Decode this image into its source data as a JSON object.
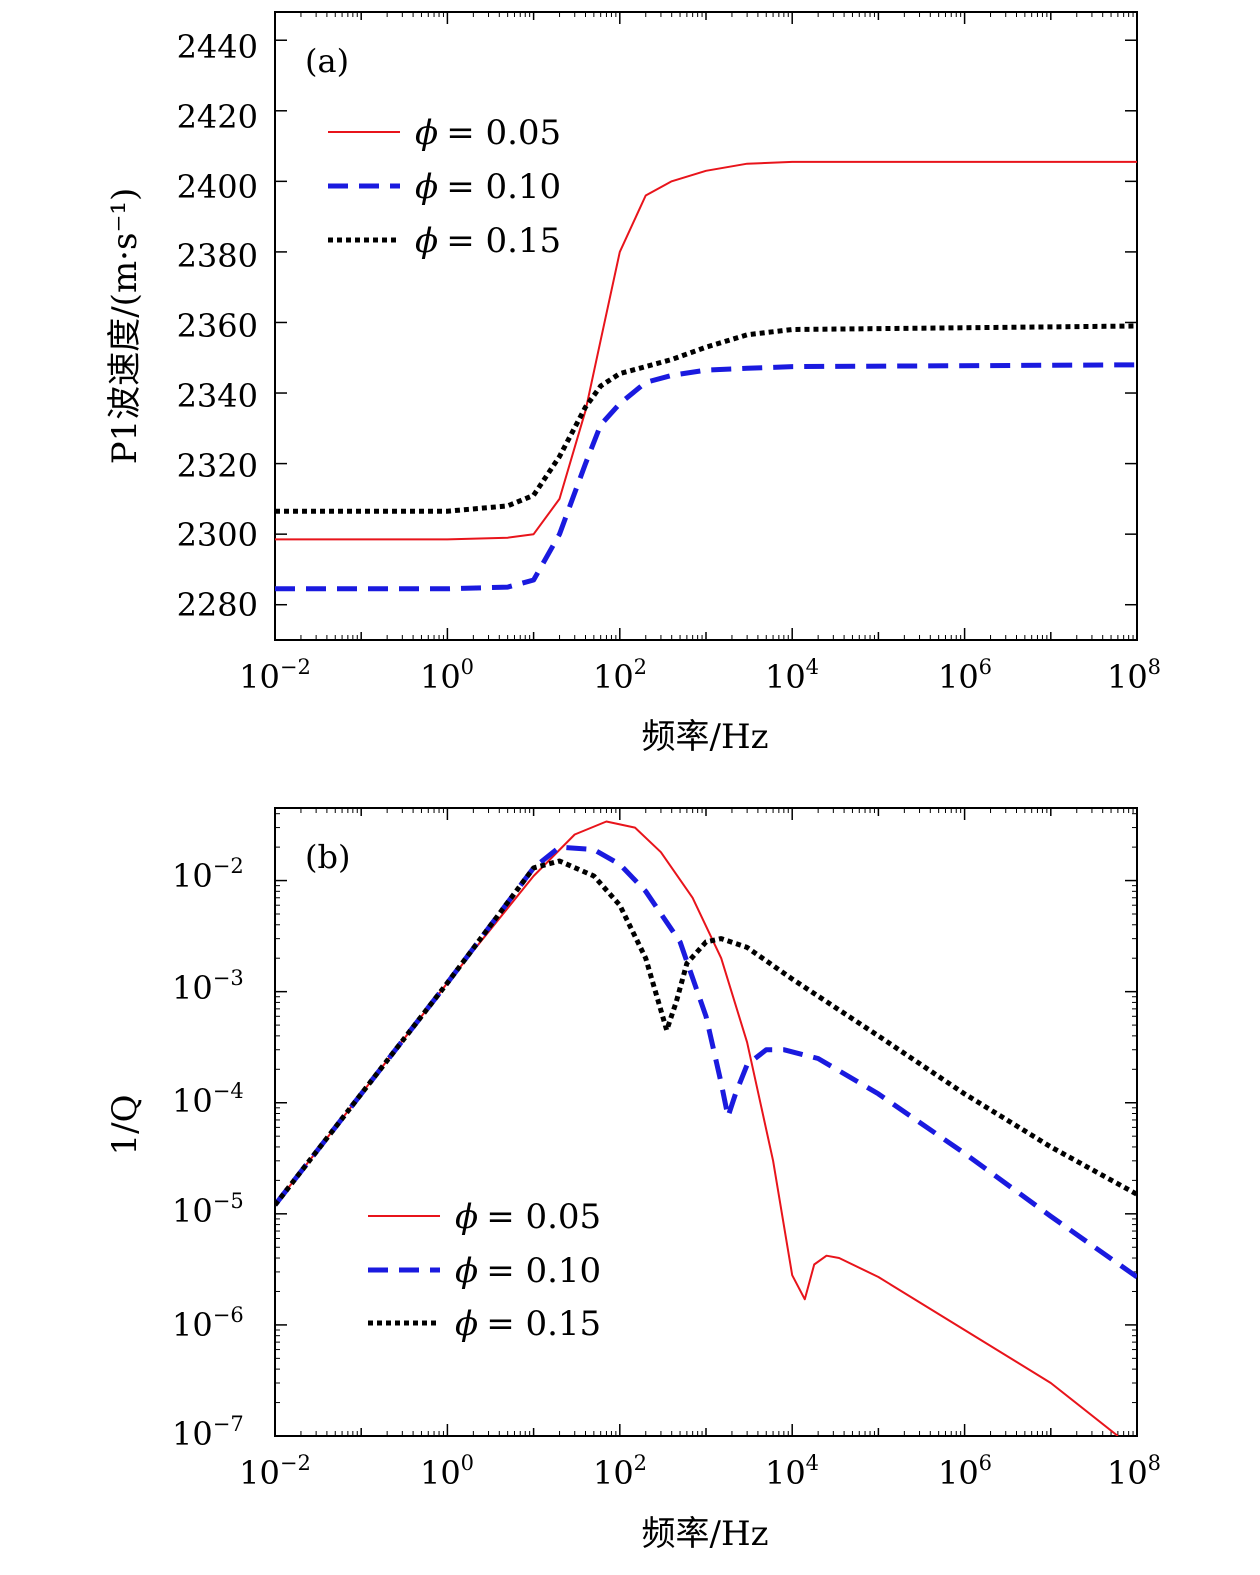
{
  "colors": {
    "red": "#e8141b",
    "blue": "#1a1adf",
    "black": "#000000"
  },
  "chart_data": [
    {
      "type": "line",
      "panel_label": "(a)",
      "xscale": "log",
      "xlim": [
        0.01,
        100000000
      ],
      "ylim": [
        2270,
        2448
      ],
      "xlabel": "频率/Hz",
      "ylabel": "P1波速度/(m·s⁻¹)",
      "x_ticks": [
        {
          "base": "10",
          "exp": "−2"
        },
        {
          "base": "10",
          "exp": "0"
        },
        {
          "base": "10",
          "exp": "2"
        },
        {
          "base": "10",
          "exp": "4"
        },
        {
          "base": "10",
          "exp": "6"
        },
        {
          "base": "10",
          "exp": "8"
        }
      ],
      "y_ticks": [
        "2280",
        "2300",
        "2320",
        "2340",
        "2360",
        "2380",
        "2400",
        "2420",
        "2440"
      ],
      "y_tick_values": [
        2280,
        2300,
        2320,
        2340,
        2360,
        2380,
        2400,
        2420,
        2440
      ],
      "legend_position": "upper-left",
      "series": [
        {
          "name": "ϕ = 0.05",
          "phi_label": "ϕ",
          "value_label": "= 0.05",
          "style": "solid",
          "x": [
            0.01,
            1,
            5,
            10,
            20,
            40,
            60,
            100,
            200,
            400,
            1000,
            3000,
            10000,
            100000000
          ],
          "y": [
            2298.5,
            2298.5,
            2299,
            2300,
            2310,
            2335,
            2355,
            2380,
            2396,
            2400,
            2403,
            2405,
            2405.5,
            2405.5
          ]
        },
        {
          "name": "ϕ = 0.10",
          "phi_label": "ϕ",
          "value_label": "= 0.10",
          "style": "dashed",
          "x": [
            0.01,
            1,
            5,
            10,
            20,
            40,
            60,
            100,
            200,
            400,
            1000,
            3000,
            10000,
            100000000
          ],
          "y": [
            2284.5,
            2284.5,
            2285,
            2287,
            2300,
            2320,
            2331,
            2337,
            2343,
            2345,
            2346.5,
            2347,
            2347.5,
            2348
          ]
        },
        {
          "name": "ϕ = 0.15",
          "phi_label": "ϕ",
          "value_label": "= 0.15",
          "style": "dotted",
          "x": [
            0.01,
            1,
            5,
            10,
            20,
            40,
            60,
            100,
            200,
            400,
            1000,
            3000,
            10000,
            100000000
          ],
          "y": [
            2306.5,
            2306.5,
            2308,
            2311,
            2322,
            2336,
            2342,
            2345.5,
            2347.5,
            2349.5,
            2353,
            2356.5,
            2358,
            2359
          ]
        }
      ]
    },
    {
      "type": "line",
      "panel_label": "(b)",
      "xscale": "log",
      "yscale": "log",
      "xlim": [
        0.01,
        100000000
      ],
      "ylim": [
        1e-07,
        0.045
      ],
      "xlabel": "频率/Hz",
      "ylabel": "1/Q",
      "x_ticks": [
        {
          "base": "10",
          "exp": "−2"
        },
        {
          "base": "10",
          "exp": "0"
        },
        {
          "base": "10",
          "exp": "2"
        },
        {
          "base": "10",
          "exp": "4"
        },
        {
          "base": "10",
          "exp": "6"
        },
        {
          "base": "10",
          "exp": "8"
        }
      ],
      "y_ticks": [
        {
          "base": "10",
          "exp": "−7"
        },
        {
          "base": "10",
          "exp": "−6"
        },
        {
          "base": "10",
          "exp": "−5"
        },
        {
          "base": "10",
          "exp": "−4"
        },
        {
          "base": "10",
          "exp": "−3"
        },
        {
          "base": "10",
          "exp": "−2"
        }
      ],
      "y_tick_values": [
        1e-07,
        1e-06,
        1e-05,
        0.0001,
        0.001,
        0.01
      ],
      "legend_position": "lower-left",
      "series": [
        {
          "name": "ϕ = 0.05",
          "phi_label": "ϕ",
          "value_label": "= 0.05",
          "style": "solid",
          "x": [
            0.01,
            1,
            10,
            30,
            70,
            150,
            300,
            700,
            1500,
            3000,
            6000,
            10000,
            14000,
            18000,
            25000,
            35000,
            100000,
            1000000,
            10000000,
            60000000
          ],
          "y": [
            1.2e-05,
            0.0012,
            0.011,
            0.026,
            0.034,
            0.03,
            0.018,
            0.007,
            0.002,
            0.00035,
            3e-05,
            2.8e-06,
            1.7e-06,
            3.5e-06,
            4.2e-06,
            4e-06,
            2.7e-06,
            9e-07,
            3e-07,
            1e-07
          ]
        },
        {
          "name": "ϕ = 0.10",
          "phi_label": "ϕ",
          "value_label": "= 0.10",
          "style": "dashed",
          "x": [
            0.01,
            1,
            10,
            20,
            50,
            100,
            200,
            500,
            1000,
            1500,
            1800,
            2200,
            3000,
            5000,
            8000,
            20000,
            100000,
            1000000,
            10000000,
            100000000
          ],
          "y": [
            1.2e-05,
            0.0012,
            0.013,
            0.02,
            0.019,
            0.014,
            0.008,
            0.0028,
            0.0006,
            0.00015,
            7.5e-05,
            0.00012,
            0.00022,
            0.0003,
            0.0003,
            0.00025,
            0.00012,
            3.5e-05,
            9.5e-06,
            2.7e-06
          ]
        },
        {
          "name": "ϕ = 0.15",
          "phi_label": "ϕ",
          "value_label": "= 0.15",
          "style": "dotted",
          "x": [
            0.01,
            1,
            10,
            20,
            50,
            100,
            200,
            350,
            450,
            600,
            1000,
            1500,
            3000,
            10000,
            100000,
            1000000,
            10000000,
            100000000
          ],
          "y": [
            1.2e-05,
            0.0012,
            0.013,
            0.015,
            0.011,
            0.006,
            0.002,
            0.00045,
            0.0008,
            0.0018,
            0.0028,
            0.003,
            0.0025,
            0.0013,
            0.0004,
            0.00012,
            4e-05,
            1.5e-05
          ]
        }
      ]
    }
  ]
}
